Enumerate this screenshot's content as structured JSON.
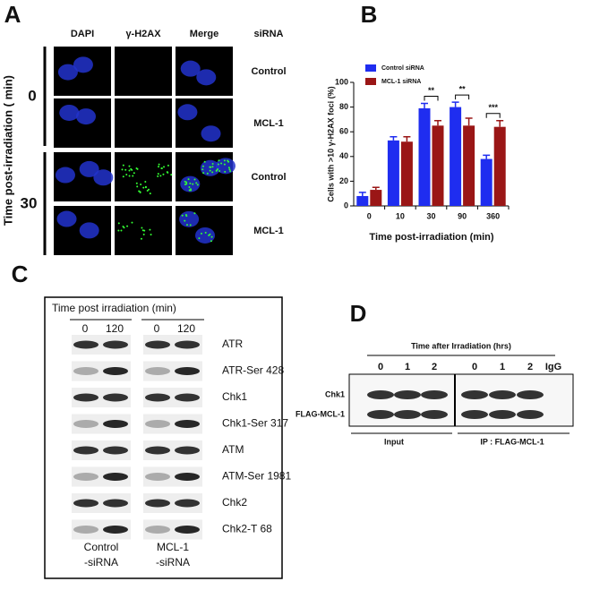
{
  "panel_a": {
    "label": "A",
    "columns": [
      "DAPI",
      "γ-H2AX",
      "Merge",
      "siRNA"
    ],
    "y_label": "Time post-irradiation ( min)",
    "times": [
      "0",
      "30"
    ],
    "rows": [
      "Control",
      "MCL-1",
      "Control",
      "MCL-1"
    ]
  },
  "chart_data": {
    "type": "bar",
    "panel_label": "B",
    "y_label": "Cells with >10 γ-H2AX foci (%)",
    "x_label": "Time post-irradiation (min)",
    "categories": [
      "0",
      "10",
      "30",
      "90",
      "360"
    ],
    "series": [
      {
        "name": "Control siRNA",
        "color": "#1f2df0",
        "values": [
          8,
          53,
          79,
          80,
          38
        ],
        "errors": [
          3,
          3,
          4,
          4,
          3
        ]
      },
      {
        "name": "MCL-1 siRNA",
        "color": "#9a1616",
        "values": [
          13,
          52,
          65,
          65,
          64
        ],
        "errors": [
          2,
          4,
          4,
          6,
          5
        ]
      }
    ],
    "annotations": [
      null,
      null,
      "**",
      "**",
      "***"
    ],
    "ylim": [
      0,
      100
    ],
    "yticks": [
      0,
      20,
      40,
      60,
      80,
      100
    ],
    "legend": "upper left"
  },
  "panel_c": {
    "label": "C",
    "header": "Time post irradiation (min)",
    "lanes": [
      "0",
      "120",
      "0",
      "120"
    ],
    "proteins": [
      "ATR",
      "ATR-Ser 428",
      "Chk1",
      "Chk1-Ser 317",
      "ATM",
      "ATM-Ser 1981",
      "Chk2",
      "Chk2-T 68"
    ],
    "groups": [
      [
        "Control",
        "-siRNA"
      ],
      [
        "MCL-1",
        "-siRNA"
      ]
    ]
  },
  "panel_d": {
    "label": "D",
    "header": "Time after Irradiation (hrs)",
    "lanes": [
      "0",
      "1",
      "2",
      "0",
      "1",
      "2",
      "IgG"
    ],
    "proteins": [
      "Chk1",
      "FLAG-MCL-1"
    ],
    "groups": [
      "Input",
      "IP : FLAG-MCL-1"
    ]
  }
}
